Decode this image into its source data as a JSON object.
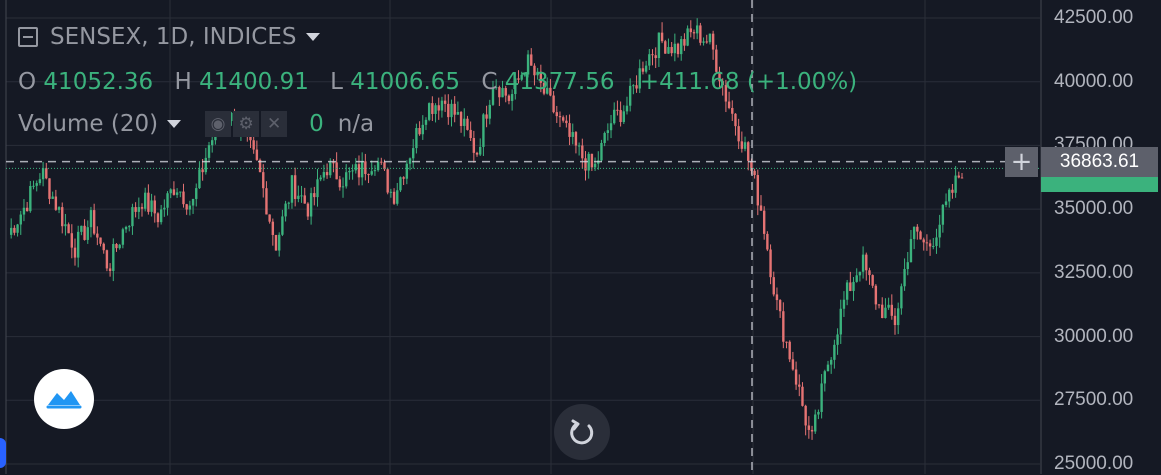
{
  "legend": {
    "symbol": "SENSEX, 1D, INDICES",
    "o_key": "O",
    "o_val": "41052.36",
    "h_key": "H",
    "h_val": "41400.91",
    "l_key": "L",
    "l_val": "41006.65",
    "c_key": "C",
    "c_val": "41377.56",
    "change": "+411.68 (+1.00%)",
    "volume_label": "Volume (20)",
    "volume_value": "0",
    "volume_na": "n/a"
  },
  "crosshair_price": "36863.61",
  "last_price_partial": "36xxx.xx",
  "plus_glyph": "+",
  "colors": {
    "background": "#151924",
    "grid": "#2a2e39",
    "up": "#3bb27d",
    "down": "#e57373",
    "crosshair": "#9598a1"
  },
  "chart_data": {
    "type": "candlestick",
    "title": "SENSEX, 1D, INDICES",
    "y_ticks": [
      "42500.00",
      "40000.00",
      "37500.00",
      "35000.00",
      "32500.00",
      "30000.00",
      "27500.00",
      "25000.00"
    ],
    "ylim": [
      25000,
      43000
    ],
    "grid": true,
    "current_price": 36863.61,
    "last_close_line": 36600,
    "path_closes": [
      34000,
      35100,
      36500,
      35000,
      33500,
      34600,
      32700,
      34400,
      35400,
      34700,
      36000,
      35100,
      37500,
      38800,
      38100,
      36500,
      33600,
      36000,
      35000,
      36700,
      36200,
      36500,
      37000,
      35500,
      37200,
      39000,
      39300,
      38500,
      37200,
      40100,
      39300,
      40800,
      39600,
      38400,
      37300,
      36500,
      38400,
      39100,
      40800,
      41600,
      41300,
      42000,
      41500,
      39200,
      37500,
      35000,
      31000,
      28600,
      25800,
      29000,
      31500,
      33000,
      31200,
      30600,
      34100,
      33500,
      35000,
      36600
    ]
  }
}
